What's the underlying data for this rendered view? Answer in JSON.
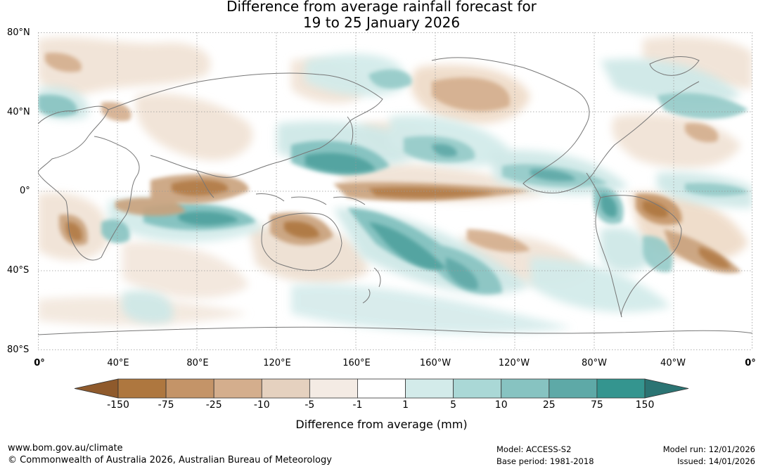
{
  "title": {
    "line1": "Difference from average rainfall forecast for",
    "line2": "19 to 25 January 2026"
  },
  "map": {
    "lat_labels": [
      "80°N",
      "40°N",
      "0°",
      "40°S",
      "80°S"
    ],
    "lon_labels": [
      "0°",
      "40°E",
      "80°E",
      "120°E",
      "160°E",
      "160°W",
      "120°W",
      "80°W",
      "40°W",
      "0°"
    ],
    "land_outline_color": "#777777",
    "gridline_style": "dotted"
  },
  "legend": {
    "title": "Difference from average (mm)",
    "tick_labels": [
      "-150",
      "-75",
      "-25",
      "-10",
      "-5",
      "-1",
      "1",
      "5",
      "10",
      "25",
      "75",
      "150"
    ],
    "colors": {
      "under": "#8f5a2c",
      "bins": [
        "#ae773f",
        "#c49468",
        "#d4ae8d",
        "#e5d1bf",
        "#f4ebe4",
        "#ffffff",
        "#d3ebea",
        "#aad8d6",
        "#87c3c1",
        "#5ea9a7",
        "#34958f"
      ],
      "over": "#2b7473"
    }
  },
  "footer": {
    "website": "www.bom.gov.au/climate",
    "copyright": "© Commonwealth of Australia 2026, Australian Bureau of Meteorology",
    "model": "Model: ACCESS-S2",
    "base_period": "Base period: 1981-2018",
    "model_run": "Model run: 12/01/2026",
    "issued": "Issued: 14/01/2026"
  }
}
